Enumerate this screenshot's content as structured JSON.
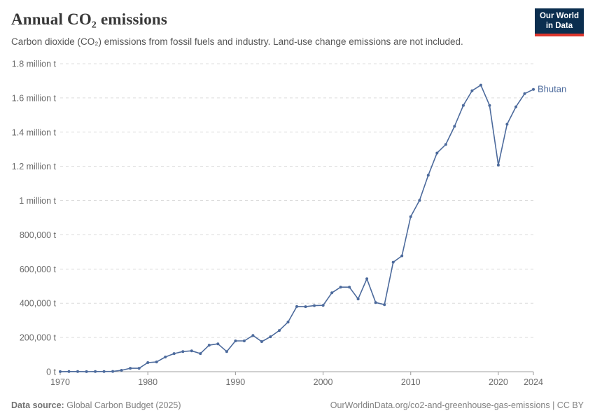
{
  "header": {
    "title": "Annual CO₂ emissions",
    "subtitle": "Carbon dioxide (CO₂) emissions from fossil fuels and industry. Land-use change emissions are not included."
  },
  "logo": {
    "line1": "Our World",
    "line2": "in Data",
    "bg_color": "#0b2e4f",
    "stripe_color": "#dc352c"
  },
  "chart_data": {
    "type": "line",
    "title": "Annual CO₂ emissions",
    "entity": "Bhutan",
    "unit": "t",
    "xlim": [
      1970,
      2024
    ],
    "ylim": [
      0,
      1800000
    ],
    "grid": "horizontal-dashed",
    "legend_position": "end-of-line-label",
    "x_ticks": [
      1970,
      1980,
      1990,
      2000,
      2010,
      2020,
      2024
    ],
    "y_ticks": [
      {
        "value": 0,
        "label": "0 t"
      },
      {
        "value": 200000,
        "label": "200,000 t"
      },
      {
        "value": 400000,
        "label": "400,000 t"
      },
      {
        "value": 600000,
        "label": "600,000 t"
      },
      {
        "value": 800000,
        "label": "800,000 t"
      },
      {
        "value": 1000000,
        "label": "1 million t"
      },
      {
        "value": 1200000,
        "label": "1.2 million t"
      },
      {
        "value": 1400000,
        "label": "1.4 million t"
      },
      {
        "value": 1600000,
        "label": "1.6 million t"
      },
      {
        "value": 1800000,
        "label": "1.8 million t"
      }
    ],
    "series": [
      {
        "name": "Bhutan",
        "color": "#4c6a9c",
        "x": [
          1970,
          1971,
          1972,
          1973,
          1974,
          1975,
          1976,
          1977,
          1978,
          1979,
          1980,
          1981,
          1982,
          1983,
          1984,
          1985,
          1986,
          1987,
          1988,
          1989,
          1990,
          1991,
          1992,
          1993,
          1994,
          1995,
          1996,
          1997,
          1998,
          1999,
          2000,
          2001,
          2002,
          2003,
          2004,
          2005,
          2006,
          2007,
          2008,
          2009,
          2010,
          2011,
          2012,
          2013,
          2014,
          2015,
          2016,
          2017,
          2018,
          2019,
          2020,
          2021,
          2022,
          2023,
          2024
        ],
        "values": [
          500,
          700,
          700,
          600,
          800,
          1100,
          1500,
          8000,
          20000,
          20000,
          53000,
          57000,
          86000,
          106000,
          118000,
          122000,
          106000,
          155000,
          163000,
          118000,
          180000,
          180000,
          212000,
          176000,
          204000,
          241000,
          290000,
          381000,
          380000,
          386000,
          388000,
          461000,
          494000,
          494000,
          425000,
          543000,
          404000,
          392000,
          640000,
          677000,
          906000,
          1001000,
          1148000,
          1278000,
          1328000,
          1434000,
          1556000,
          1642000,
          1675000,
          1556000,
          1208000,
          1446000,
          1548000,
          1625000,
          1650000
        ]
      }
    ],
    "colors": {
      "gridline": "#dcdcdc",
      "axis_line": "#a0a0a0",
      "tick": "#999999",
      "tick_label": "#6b6b6b"
    }
  },
  "footer": {
    "source_label": "Data source:",
    "source_value": "Global Carbon Budget (2025)",
    "url": "OurWorldinData.org/co2-and-greenhouse-gas-emissions",
    "separator": " | ",
    "license": "CC BY"
  }
}
